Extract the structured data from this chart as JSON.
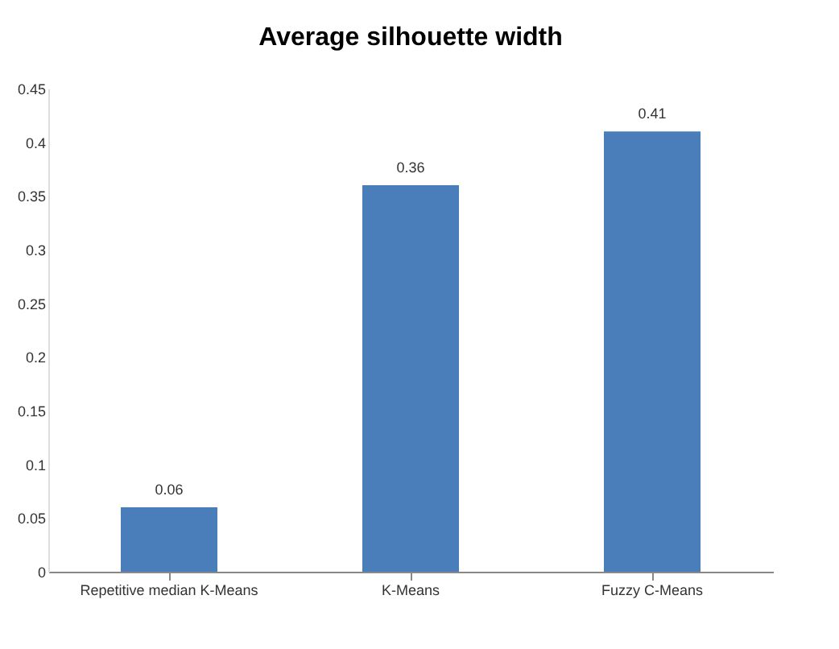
{
  "chart_data": {
    "type": "bar",
    "title": "Average silhouette width",
    "categories": [
      "Repetitive median K-Means",
      "K-Means",
      "Fuzzy C-Means"
    ],
    "values": [
      0.06,
      0.36,
      0.41
    ],
    "color": "#4a7ebb",
    "ylim": [
      0,
      0.45
    ],
    "yticks": [
      0,
      0.05,
      0.1,
      0.15,
      0.2,
      0.25,
      0.3,
      0.35,
      0.4,
      0.45
    ],
    "data_labels": true
  }
}
